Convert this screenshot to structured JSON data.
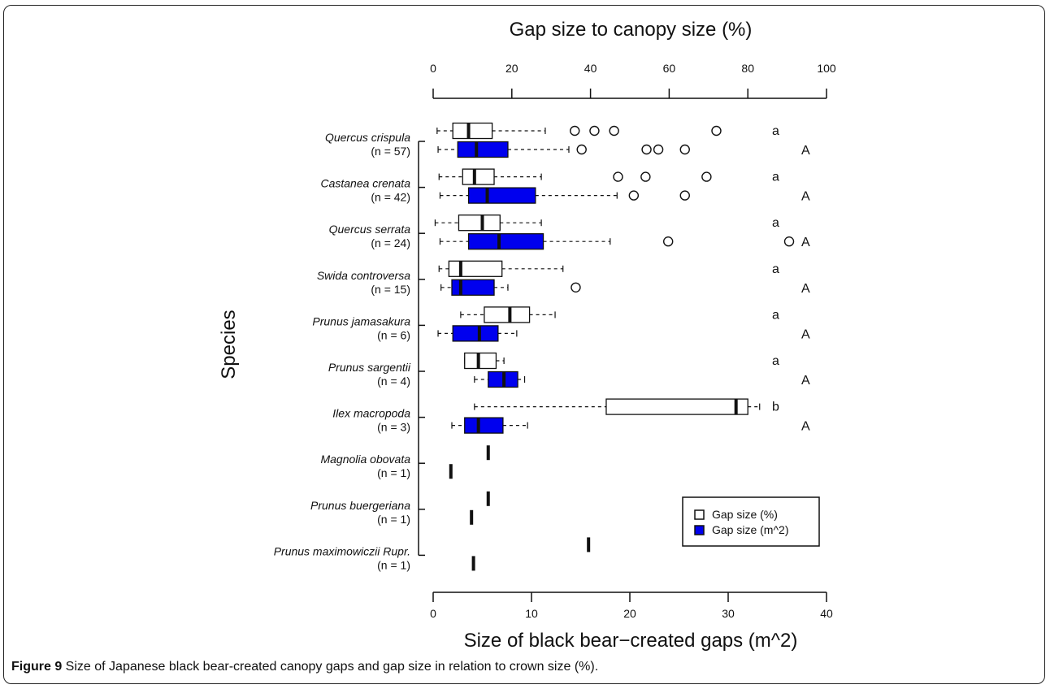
{
  "chart_data": {
    "type": "boxplot",
    "orientation": "horizontal",
    "top_axis_label": "Gap size to canopy size (%)",
    "top_axis_range": [
      0,
      100
    ],
    "top_axis_ticks": [
      "0",
      "20",
      "40",
      "60",
      "80",
      "100"
    ],
    "bottom_axis_label": "Size of black bear−created gaps (m^2)",
    "bottom_axis_range": [
      0,
      40
    ],
    "bottom_axis_ticks": [
      "0",
      "10",
      "20",
      "30",
      "40"
    ],
    "ylabel": "Species",
    "legend": {
      "position": "bottom-right",
      "entries": [
        {
          "label": "Gap size (%)",
          "color": "#ffffff"
        },
        {
          "label": "Gap size (m^2)",
          "color": "#0000ee"
        }
      ]
    },
    "species": [
      {
        "name": "Quercus crispula",
        "n_label": "(n = 57)",
        "pct": {
          "min": 1.0,
          "q1": 5.0,
          "median": 9.0,
          "q3": 15.0,
          "max": 28.5,
          "outliers": [
            36,
            41,
            46,
            72
          ],
          "letter": "a"
        },
        "m2": {
          "min": 0.5,
          "q1": 2.5,
          "median": 4.4,
          "q3": 7.6,
          "max": 13.8,
          "outliers": [
            15.1,
            21.7,
            22.9,
            25.6
          ],
          "letter": "A"
        }
      },
      {
        "name": "Castanea crenata",
        "n_label": "(n = 42)",
        "pct": {
          "min": 1.5,
          "q1": 7.5,
          "median": 10.5,
          "q3": 15.5,
          "max": 27.5,
          "outliers": [
            47,
            54,
            69.5
          ],
          "letter": "a"
        },
        "m2": {
          "min": 0.7,
          "q1": 3.6,
          "median": 5.5,
          "q3": 10.4,
          "max": 18.7,
          "outliers": [
            20.4,
            25.6
          ],
          "letter": "A"
        }
      },
      {
        "name": "Quercus serrata",
        "n_label": "(n = 24)",
        "pct": {
          "min": 0.5,
          "q1": 6.5,
          "median": 12.5,
          "q3": 17.0,
          "max": 27.5,
          "outliers": [],
          "letter": "a"
        },
        "m2": {
          "min": 0.7,
          "q1": 3.6,
          "median": 6.7,
          "q3": 11.2,
          "max": 18.0,
          "outliers": [
            23.9,
            36.2
          ],
          "letter": "A"
        }
      },
      {
        "name": "Swida controversa",
        "n_label": "(n = 15)",
        "pct": {
          "min": 1.5,
          "q1": 4.0,
          "median": 7.0,
          "q3": 17.5,
          "max": 33.0,
          "outliers": [],
          "letter": "a"
        },
        "m2": {
          "min": 0.8,
          "q1": 1.9,
          "median": 2.8,
          "q3": 6.2,
          "max": 7.6,
          "outliers": [
            14.5
          ],
          "letter": "A"
        }
      },
      {
        "name": "Prunus jamasakura",
        "n_label": "(n = 6)",
        "pct": {
          "min": 7.0,
          "q1": 13.0,
          "median": 19.5,
          "q3": 24.5,
          "max": 31.0,
          "outliers": [],
          "letter": "a"
        },
        "m2": {
          "min": 0.5,
          "q1": 2.0,
          "median": 4.7,
          "q3": 6.6,
          "max": 8.5,
          "outliers": [],
          "letter": "A"
        }
      },
      {
        "name": "Prunus sargentii",
        "n_label": "(n = 4)",
        "pct": {
          "min": 8.0,
          "q1": 8.0,
          "median": 11.5,
          "q3": 16.0,
          "max": 18.0,
          "outliers": [],
          "letter": "a"
        },
        "m2": {
          "min": 4.2,
          "q1": 5.6,
          "median": 7.2,
          "q3": 8.6,
          "max": 9.3,
          "outliers": [],
          "letter": "A"
        }
      },
      {
        "name": "Ilex macropoda",
        "n_label": "(n = 3)",
        "pct": {
          "min": 10.5,
          "q1": 44.0,
          "median": 77.0,
          "q3": 80.0,
          "max": 83.0,
          "outliers": [],
          "letter": "b"
        },
        "m2": {
          "min": 1.9,
          "q1": 3.2,
          "median": 4.6,
          "q3": 7.1,
          "max": 9.6,
          "outliers": [],
          "letter": "A"
        }
      },
      {
        "name": "Magnolia obovata",
        "n_label": "(n = 1)",
        "pct": {
          "value": 14.0
        },
        "m2": {
          "value": 1.8
        }
      },
      {
        "name": "Prunus buergeriana",
        "n_label": "(n = 1)",
        "pct": {
          "value": 14.0
        },
        "m2": {
          "value": 3.9
        }
      },
      {
        "name": "Prunus maximowiczii Rupr.",
        "n_label": "(n = 1)",
        "pct": {
          "value": 39.5
        },
        "m2": {
          "value": 4.1
        }
      }
    ]
  },
  "caption": {
    "label": "Figure 9",
    "text": " Size of Japanese black bear-created canopy gaps and gap size in relation to crown size (%)."
  }
}
